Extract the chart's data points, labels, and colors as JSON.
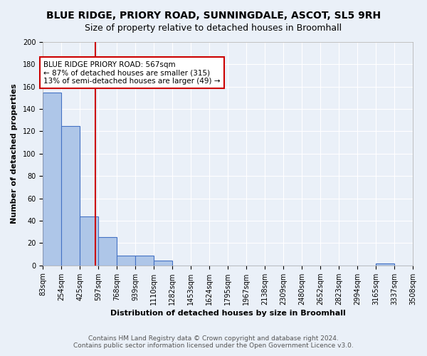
{
  "title": "BLUE RIDGE, PRIORY ROAD, SUNNINGDALE, ASCOT, SL5 9RH",
  "subtitle": "Size of property relative to detached houses in Broomhall",
  "xlabel": "Distribution of detached houses by size in Broomhall",
  "ylabel": "Number of detached properties",
  "bar_edges": [
    83,
    254,
    425,
    597,
    768,
    939,
    1110,
    1282,
    1453,
    1624,
    1795,
    1967,
    2138,
    2309,
    2480,
    2652,
    2823,
    2994,
    3165,
    3337,
    3508
  ],
  "bar_heights": [
    155,
    125,
    44,
    25,
    9,
    9,
    4,
    0,
    0,
    0,
    0,
    0,
    0,
    0,
    0,
    0,
    0,
    0,
    2,
    0
  ],
  "bar_color": "#aec6e8",
  "bar_edgecolor": "#4472c4",
  "property_value": 567,
  "vline_color": "#cc0000",
  "annotation_text": "BLUE RIDGE PRIORY ROAD: 567sqm\n← 87% of detached houses are smaller (315)\n13% of semi-detached houses are larger (49) →",
  "annotation_box_edgecolor": "#cc0000",
  "annotation_box_facecolor": "#ffffff",
  "ylim": [
    0,
    200
  ],
  "yticks": [
    0,
    20,
    40,
    60,
    80,
    100,
    120,
    140,
    160,
    180,
    200
  ],
  "background_color": "#eaf0f8",
  "grid_color": "#ffffff",
  "footer_line1": "Contains HM Land Registry data © Crown copyright and database right 2024.",
  "footer_line2": "Contains public sector information licensed under the Open Government Licence v3.0.",
  "title_fontsize": 10,
  "subtitle_fontsize": 9,
  "axis_label_fontsize": 8,
  "tick_fontsize": 7,
  "annotation_fontsize": 7.5,
  "footer_fontsize": 6.5
}
